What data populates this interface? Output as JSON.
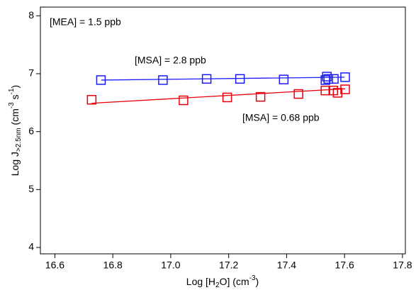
{
  "chart_data": {
    "type": "scatter",
    "x_label": [
      "Log [H",
      "2",
      "O] (cm",
      "-3",
      ")"
    ],
    "y_label": [
      "Log J",
      ">2.5nm",
      " (cm",
      "-3",
      " s",
      "-1",
      ")"
    ],
    "annotations": [
      {
        "text": "[MEA] = 1.5 ppb",
        "color": "#000000"
      },
      {
        "text": "[MSA] = 2.8 ppb",
        "color": "#1a1aff"
      },
      {
        "text": "[MSA] = 0.68 ppb",
        "color": "#e8000b"
      }
    ],
    "xlim": [
      16.55,
      17.81
    ],
    "ylim": [
      3.89,
      8.15
    ],
    "xticks": [
      {
        "value": 16.6,
        "label": "16.6"
      },
      {
        "value": 16.8,
        "label": "16.8"
      },
      {
        "value": 17.0,
        "label": "17.0"
      },
      {
        "value": 17.2,
        "label": "17.2"
      },
      {
        "value": 17.4,
        "label": "17.4"
      },
      {
        "value": 17.6,
        "label": "17.6"
      },
      {
        "value": 17.8,
        "label": "17.8"
      }
    ],
    "yticks": [
      4,
      5,
      6,
      7,
      8
    ],
    "series": [
      {
        "color": "#1a1aff",
        "x": [
          16.759,
          16.973,
          17.124,
          17.239,
          17.39,
          17.534,
          17.539,
          17.544,
          17.563,
          17.602
        ],
        "values": [
          6.89,
          6.89,
          6.91,
          6.91,
          6.9,
          6.89,
          6.95,
          6.91,
          6.91,
          6.94
        ],
        "fit": {
          "x": [
            16.76,
            17.6
          ],
          "y": [
            6.89,
            6.94
          ]
        }
      },
      {
        "color": "#e8000b",
        "x": [
          16.727,
          17.044,
          17.195,
          17.31,
          17.441,
          17.534,
          17.561,
          17.576,
          17.602
        ],
        "values": [
          6.55,
          6.54,
          6.59,
          6.6,
          6.65,
          6.71,
          6.71,
          6.67,
          6.73
        ],
        "fit": {
          "x": [
            16.727,
            17.602
          ],
          "y": [
            6.49,
            6.74
          ]
        }
      }
    ]
  }
}
